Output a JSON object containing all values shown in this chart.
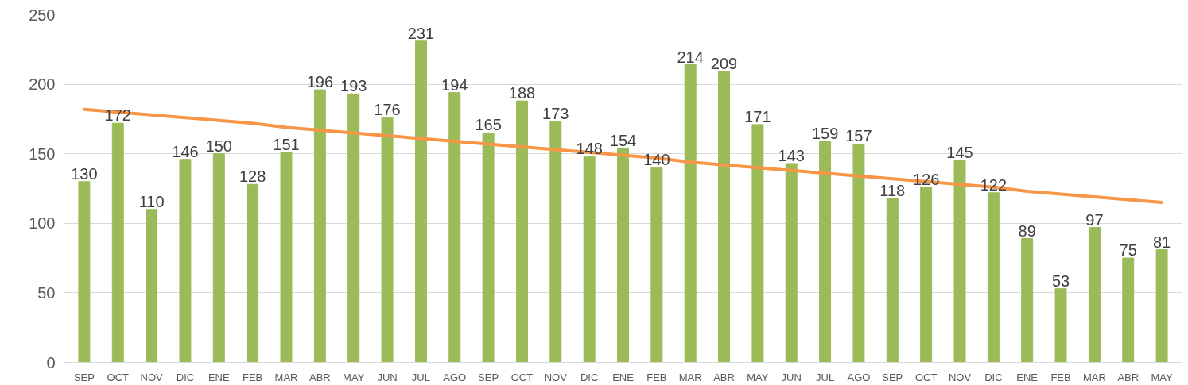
{
  "chart_data": {
    "type": "bar",
    "categories": [
      "SEP",
      "OCT",
      "NOV",
      "DIC",
      "ENE",
      "FEB",
      "MAR",
      "ABR",
      "MAY",
      "JUN",
      "JUL",
      "AGO",
      "SEP",
      "OCT",
      "NOV",
      "DIC",
      "ENE",
      "FEB",
      "MAR",
      "ABR",
      "MAY",
      "JUN",
      "JUL",
      "AGO",
      "SEP",
      "OCT",
      "NOV",
      "DIC",
      "ENE",
      "FEB",
      "MAR",
      "ABR",
      "MAY"
    ],
    "series": [
      {
        "color": "#9bbb59",
        "values": [
          130,
          172,
          110,
          146,
          150,
          128,
          151,
          196,
          193,
          176,
          231,
          194,
          165,
          188,
          173,
          148,
          154,
          140,
          214,
          209,
          171,
          143,
          159,
          157,
          118,
          126,
          145,
          122,
          89,
          53,
          97,
          75,
          81
        ],
        "value_labels": [
          "130",
          "172",
          "110",
          "146",
          "150",
          "128",
          "151",
          "196",
          "193",
          "176",
          "231",
          "194",
          "165",
          "188",
          "173",
          "148",
          "154",
          "140",
          "214",
          "209",
          "171",
          "143",
          "159",
          "157",
          "118",
          "126",
          "145",
          "122",
          "89",
          "53",
          "97",
          "75",
          "81"
        ]
      },
      {
        "type": "line",
        "color": "#f79646",
        "values": [
          182,
          180,
          178,
          176,
          174,
          172,
          169,
          167,
          165,
          163,
          161,
          159,
          157,
          155,
          153,
          151,
          149,
          147,
          144,
          142,
          140,
          138,
          136,
          134,
          132,
          130,
          128,
          126,
          123,
          121,
          119,
          117,
          115
        ]
      }
    ],
    "ylim": [
      0,
      250
    ],
    "yticks": [
      0,
      50,
      100,
      150,
      200,
      250
    ],
    "grid": "y"
  }
}
